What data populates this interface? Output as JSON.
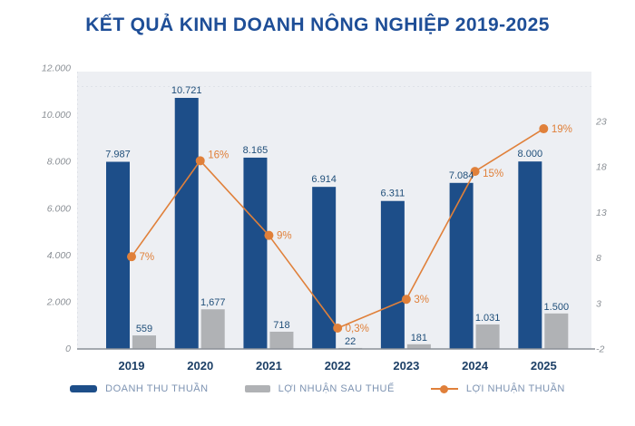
{
  "title": "KẾT QUẢ KINH DOANH NÔNG NGHIỆP 2019-2025",
  "colors": {
    "title": "#1e4e97",
    "revenue_bar": "#1d4e89",
    "profit_bar": "#b0b2b5",
    "margin_line": "#e0803a",
    "value_label": "#1f4e79",
    "year_label": "#1c3f66",
    "axis_tick": "#8b9096",
    "legend_text": "#7d93b2",
    "plot_bg": "#edeff3",
    "baseline": "#8a8f97",
    "grid_dotted": "#dfe2e8"
  },
  "chart_data": {
    "type": "bar",
    "subtype": "combo-bar-line",
    "title": "KẾT QUẢ KINH DOANH NÔNG NGHIỆP 2019-2025",
    "categories": [
      "2019",
      "2020",
      "2021",
      "2022",
      "2023",
      "2024",
      "2025"
    ],
    "series": [
      {
        "name": "DOANH THU THUẦN",
        "type": "bar",
        "values": [
          7987,
          10721,
          8165,
          6914,
          6311,
          7084,
          8000
        ],
        "labels": [
          "7.987",
          "10.721",
          "8.165",
          "6.914",
          "6.311",
          "7.084",
          "8.000"
        ]
      },
      {
        "name": "LỢI NHUẬN SAU THUẾ",
        "type": "bar",
        "values": [
          559,
          1677,
          718,
          22,
          181,
          1031,
          1500
        ],
        "labels": [
          "559",
          "1,677",
          "718",
          "22",
          "181",
          "1.031",
          "1.500"
        ]
      },
      {
        "name": "LỢI NHUẬN THUẦN",
        "type": "line",
        "values": [
          7,
          16,
          9,
          0.3,
          3,
          15,
          19
        ],
        "labels": [
          "7%",
          "16%",
          "9%",
          "0,3%",
          "3%",
          "15%",
          "19%"
        ]
      }
    ],
    "left_axis": {
      "min": 0,
      "max": 12000,
      "step": 2000,
      "ticks": [
        "0",
        "2.000",
        "4.000",
        "6.000",
        "8.000",
        "10.000",
        "12.000"
      ]
    },
    "right_axis": {
      "min": -2,
      "max": 23,
      "step": 5,
      "ticks": [
        "-2",
        "3",
        "8",
        "13",
        "18",
        "23"
      ]
    },
    "grid": false,
    "legend_position": "bottom"
  },
  "legend": {
    "revenue": "DOANH THU THUẦN",
    "profit": "LỢI NHUẬN SAU THUẾ",
    "margin": "LỢI NHUẬN THUẦN"
  }
}
